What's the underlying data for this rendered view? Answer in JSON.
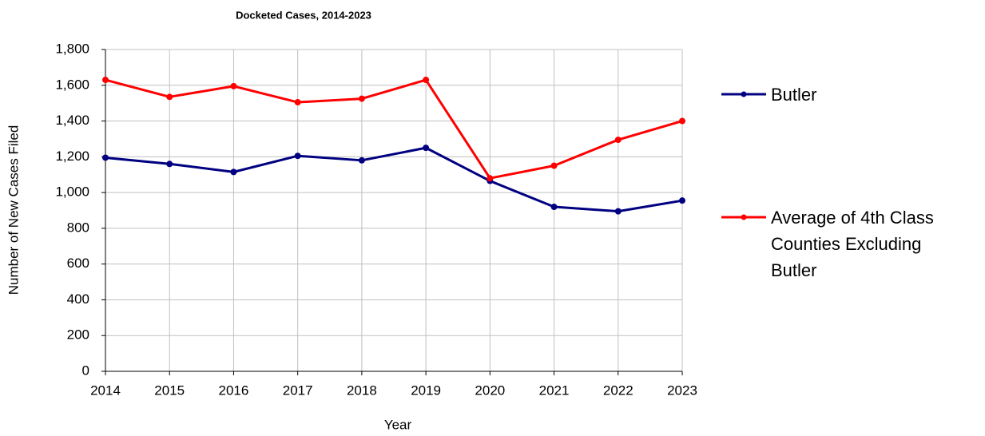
{
  "chart_data": {
    "type": "line",
    "title": "Docketed Cases, 2014-2023",
    "x_label": "Year",
    "y_label": "Number of New Cases Filed",
    "x": [
      2014,
      2015,
      2016,
      2017,
      2018,
      2019,
      2020,
      2021,
      2022,
      2023
    ],
    "xlim": [
      2014,
      2023
    ],
    "xticks": [
      2014,
      2015,
      2016,
      2017,
      2018,
      2019,
      2020,
      2021,
      2022,
      2023
    ],
    "ylim": [
      0,
      1800
    ],
    "yticks": [
      0,
      200,
      400,
      600,
      800,
      {
        "value": 1000,
        "label": "1,000"
      },
      {
        "value": 1200,
        "label": "1,200"
      },
      {
        "value": 1400,
        "label": "1,400"
      },
      {
        "value": 1600,
        "label": "1,600"
      },
      {
        "value": 1800,
        "label": "1,800"
      }
    ],
    "grid": true,
    "legend": "right",
    "series": [
      {
        "name": "Butler",
        "color": "#000080",
        "values": [
          1195,
          1160,
          1115,
          1205,
          1180,
          1250,
          1065,
          920,
          895,
          955
        ]
      },
      {
        "name": "Average of 4th Class Counties Excluding Butler",
        "color": "#ff0000",
        "values": [
          1630,
          1535,
          1595,
          1505,
          1525,
          1630,
          1080,
          1150,
          1295,
          1400
        ]
      }
    ]
  }
}
